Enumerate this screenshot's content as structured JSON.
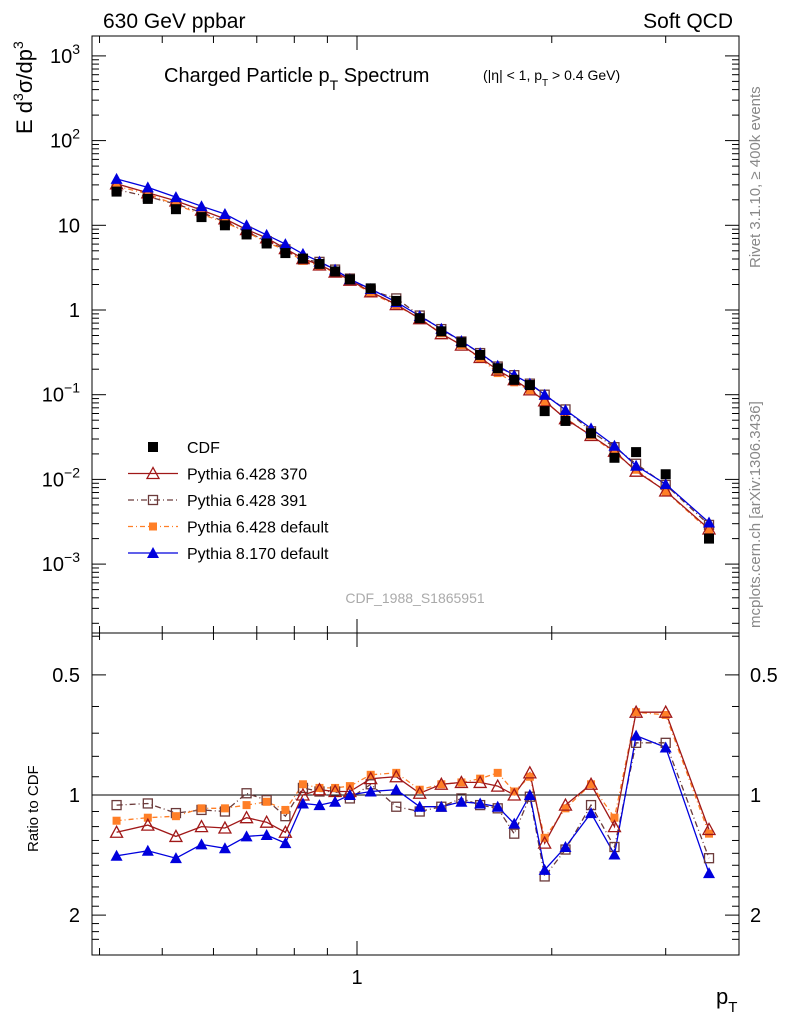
{
  "header": {
    "left": "630 GeV ppbar",
    "right": "Soft QCD"
  },
  "side": {
    "rivet": "Rivet 3.1.10, ≥ 400k events",
    "mcplots": "mcplots.cern.ch [arXiv:1306.3436]"
  },
  "watermark": "CDF_1988_S1865951",
  "title": {
    "main_pre": "Charged Particle p",
    "main_sub": "T",
    "main_post": " Spectrum",
    "cond_a": "(|η| < 1, p",
    "cond_sub": "T",
    "cond_b": " > 0.4 GeV)"
  },
  "colors": {
    "cdf": "#000000",
    "p370": "#a01818",
    "p391": "#6b3a3a",
    "pdefault": "#ff7f27",
    "p8": "#0000dd",
    "band_inner": "#99f599",
    "band_outer": "#fbff99"
  },
  "chart_data": [
    {
      "type": "scatter",
      "title": "Charged Particle pT Spectrum (|η| < 1, pT > 0.4 GeV)",
      "xlabel": "p_T",
      "ylabel": "E d³σ/dp³",
      "yscale": "log",
      "xscale": "log",
      "ylim": [
        0.00015,
        2000
      ],
      "yticks": [
        "10^-3",
        "10^-2",
        "10^-1",
        "1",
        "10",
        "10^2",
        "10^3"
      ],
      "xticks": [
        "1"
      ],
      "legend_position": "bottom-left",
      "x": [
        0.425,
        0.475,
        0.525,
        0.575,
        0.625,
        0.675,
        0.725,
        0.775,
        0.825,
        0.875,
        0.925,
        0.975,
        1.05,
        1.15,
        1.25,
        1.35,
        1.45,
        1.55,
        1.65,
        1.75,
        1.85,
        1.95,
        2.1,
        2.3,
        2.5,
        2.7,
        3.0,
        3.5
      ],
      "series": [
        {
          "name": "CDF",
          "values": [
            25,
            20.5,
            15.5,
            12.5,
            10,
            7.8,
            6.1,
            4.7,
            4.05,
            3.5,
            2.85,
            2.3,
            1.8,
            1.28,
            0.8,
            0.56,
            0.415,
            0.295,
            0.205,
            0.15,
            0.13,
            0.064,
            0.049,
            0.035,
            0.018,
            0.021,
            0.0115,
            0.002
          ]
        },
        {
          "name": "Pythia 6.428 370",
          "values": [
            30.9,
            24.2,
            19.4,
            15.1,
            11.9,
            8.9,
            7.1,
            5.3,
            4.05,
            3.4,
            2.8,
            2.25,
            1.64,
            1.16,
            0.79,
            0.525,
            0.385,
            0.275,
            0.195,
            0.15,
            0.114,
            0.0845,
            0.052,
            0.033,
            0.0215,
            0.0125,
            0.0073,
            0.0026
          ]
        },
        {
          "name": "Pythia 6.428 391",
          "values": [
            26.5,
            21.8,
            17.8,
            14.2,
            11.0,
            8.4,
            6.5,
            5.2,
            3.95,
            3.7,
            3.0,
            2.35,
            1.7,
            1.37,
            0.86,
            0.595,
            0.425,
            0.31,
            0.215,
            0.17,
            0.135,
            0.1,
            0.067,
            0.037,
            0.024,
            0.0153,
            0.0086,
            0.0029
          ]
        },
        {
          "name": "Pythia 6.428 default",
          "values": [
            29,
            23.5,
            17.5,
            13.5,
            10.8,
            8.3,
            6.3,
            5.1,
            3.8,
            3.35,
            2.75,
            2.2,
            1.6,
            1.13,
            0.8,
            0.53,
            0.385,
            0.27,
            0.18,
            0.14,
            0.113,
            0.083,
            0.053,
            0.033,
            0.0205,
            0.013,
            0.0072,
            0.0025
          ]
        },
        {
          "name": "Pythia 8.170 default",
          "values": [
            35.3,
            28.0,
            21.5,
            16.8,
            13.6,
            10.0,
            7.7,
            6.0,
            4.6,
            3.72,
            3.0,
            2.31,
            1.77,
            1.24,
            0.85,
            0.6,
            0.43,
            0.31,
            0.22,
            0.17,
            0.135,
            0.1,
            0.066,
            0.04,
            0.025,
            0.0145,
            0.0088,
            0.0031
          ]
        }
      ]
    },
    {
      "type": "line",
      "ylabel": "Ratio to CDF",
      "xlabel": "p_T",
      "ylim": [
        0.38,
        2.35
      ],
      "yticks": [
        0.5,
        1,
        2
      ],
      "xticks": [
        "1"
      ],
      "reference_line": 1,
      "x": [
        0.425,
        0.475,
        0.525,
        0.575,
        0.625,
        0.675,
        0.725,
        0.775,
        0.825,
        0.875,
        0.925,
        0.975,
        1.05,
        1.15,
        1.25,
        1.35,
        1.45,
        1.55,
        1.65,
        1.75,
        1.85,
        1.95,
        2.1,
        2.3,
        2.5,
        2.7,
        3.0,
        3.5
      ],
      "series": [
        {
          "name": "Pythia 6.428 370",
          "values": [
            1.24,
            1.19,
            1.27,
            1.2,
            1.21,
            1.14,
            1.17,
            1.24,
            1.0,
            0.97,
            0.98,
            0.98,
            0.91,
            0.9,
            0.99,
            0.94,
            0.93,
            0.93,
            0.95,
            1.0,
            0.88,
            1.32,
            1.06,
            0.94,
            1.2,
            0.62,
            0.62,
            1.22
          ]
        },
        {
          "name": "Pythia 6.428 391",
          "values": [
            1.06,
            1.05,
            1.11,
            1.09,
            1.1,
            0.99,
            1.03,
            1.13,
            0.96,
            0.98,
            0.98,
            1.02,
            0.94,
            1.07,
            1.1,
            1.07,
            1.02,
            1.06,
            1.08,
            1.25,
            1.01,
            1.6,
            1.37,
            1.06,
            1.35,
            0.74,
            0.74,
            1.44
          ]
        },
        {
          "name": "Pythia 6.428 default",
          "values": [
            1.16,
            1.14,
            1.13,
            1.08,
            1.08,
            1.06,
            1.04,
            1.09,
            0.94,
            0.96,
            0.96,
            0.95,
            0.89,
            0.88,
            0.97,
            0.94,
            0.93,
            0.91,
            0.88,
            0.98,
            0.9,
            1.28,
            1.08,
            0.94,
            1.14,
            0.62,
            0.63,
            1.25
          ]
        },
        {
          "name": "Pythia 8.170 default",
          "values": [
            1.42,
            1.38,
            1.44,
            1.33,
            1.36,
            1.27,
            1.26,
            1.32,
            1.05,
            1.06,
            1.04,
            1.0,
            0.98,
            0.97,
            1.07,
            1.07,
            1.04,
            1.05,
            1.07,
            1.18,
            1.0,
            1.54,
            1.35,
            1.11,
            1.41,
            0.71,
            0.76,
            1.57
          ]
        }
      ],
      "uncertainty_inner": [
        [
          0.425,
          0.94,
          1.06
        ],
        [
          0.475,
          0.94,
          1.06
        ],
        [
          0.525,
          0.94,
          1.06
        ],
        [
          0.575,
          0.94,
          1.06
        ],
        [
          0.625,
          0.94,
          1.06
        ],
        [
          0.675,
          0.94,
          1.06
        ],
        [
          0.725,
          0.93,
          1.07
        ],
        [
          0.775,
          0.93,
          1.07
        ],
        [
          0.825,
          0.93,
          1.07
        ],
        [
          0.875,
          0.93,
          1.07
        ],
        [
          0.925,
          0.93,
          1.07
        ],
        [
          0.975,
          0.93,
          1.07
        ],
        [
          1.05,
          0.93,
          1.07
        ],
        [
          1.15,
          0.92,
          1.08
        ],
        [
          1.25,
          0.92,
          1.08
        ],
        [
          1.35,
          0.92,
          1.08
        ],
        [
          1.45,
          0.92,
          1.08
        ],
        [
          1.55,
          0.92,
          1.08
        ],
        [
          1.65,
          0.91,
          1.09
        ],
        [
          1.75,
          0.9,
          1.1
        ],
        [
          1.85,
          0.89,
          1.11
        ],
        [
          1.95,
          0.88,
          1.12
        ],
        [
          2.1,
          0.86,
          1.14
        ],
        [
          2.3,
          0.84,
          1.16
        ],
        [
          2.5,
          0.82,
          1.18
        ],
        [
          2.7,
          0.8,
          1.2
        ],
        [
          3.0,
          0.8,
          1.2
        ],
        [
          3.5,
          0.8,
          1.2
        ]
      ],
      "uncertainty_outer": [
        [
          0.425,
          0.93,
          1.08
        ],
        [
          0.475,
          0.92,
          1.08
        ],
        [
          0.525,
          0.91,
          1.09
        ],
        [
          0.575,
          0.91,
          1.09
        ],
        [
          0.625,
          0.9,
          1.1
        ],
        [
          0.675,
          0.89,
          1.11
        ],
        [
          0.725,
          0.88,
          1.12
        ],
        [
          0.775,
          0.87,
          1.13
        ],
        [
          0.825,
          0.86,
          1.14
        ],
        [
          0.875,
          0.86,
          1.15
        ],
        [
          0.925,
          0.85,
          1.16
        ],
        [
          0.975,
          0.84,
          1.17
        ],
        [
          1.05,
          0.84,
          1.17
        ],
        [
          1.15,
          0.83,
          1.18
        ],
        [
          1.25,
          0.82,
          1.19
        ],
        [
          1.35,
          0.82,
          1.2
        ],
        [
          1.45,
          0.8,
          1.22
        ],
        [
          1.55,
          0.79,
          1.24
        ],
        [
          1.65,
          0.77,
          1.26
        ],
        [
          1.75,
          0.75,
          1.28
        ],
        [
          1.85,
          0.72,
          1.3
        ],
        [
          1.95,
          0.68,
          1.32
        ],
        [
          2.1,
          0.74,
          1.4
        ],
        [
          2.3,
          0.68,
          1.46
        ],
        [
          2.5,
          0.62,
          1.52
        ],
        [
          2.7,
          0.58,
          1.54
        ],
        [
          3.0,
          0.5,
          1.58
        ],
        [
          3.5,
          0.51,
          1.61
        ]
      ]
    }
  ],
  "axis_text": {
    "top_ylabel_a": "E d",
    "top_ylabel_sup1": "3",
    "top_ylabel_b": "σ/dp",
    "top_ylabel_sup2": "3",
    "bottom_ylabel": "Ratio to CDF",
    "xlabel": "p",
    "xlabel_sub": "T",
    "top_yticks": [
      {
        "base": "10",
        "exp": "3"
      },
      {
        "base": "10",
        "exp": "2"
      },
      {
        "base": "10",
        "exp": ""
      },
      {
        "base": "1",
        "exp": ""
      },
      {
        "base": "10",
        "exp": "−1"
      },
      {
        "base": "10",
        "exp": "−2"
      },
      {
        "base": "10",
        "exp": "−3"
      }
    ],
    "bottom_yticks": [
      "2",
      "1",
      "0.5"
    ],
    "xtick": "1"
  }
}
